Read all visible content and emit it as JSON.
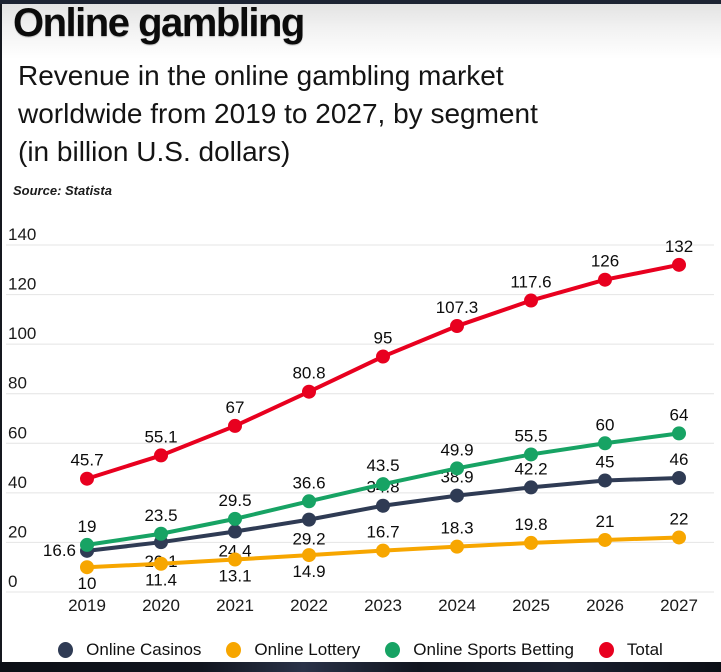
{
  "page": {
    "title": "Online gambling",
    "subtitle_lines": [
      "Revenue in the online gambling market",
      "worldwide from 2019 to 2027, by segment",
      "(in billion U.S. dollars)"
    ],
    "source": "Source: Statista"
  },
  "chart_data": {
    "type": "line",
    "title": "Revenue in the online gambling market worldwide from 2019 to 2027, by segment (in billion U.S. dollars)",
    "x": [
      2019,
      2020,
      2021,
      2022,
      2023,
      2024,
      2025,
      2026,
      2027
    ],
    "series": [
      {
        "name": "Online Casinos",
        "color": "#2f3b54",
        "values": [
          16.6,
          20.1,
          24.4,
          29.2,
          34.8,
          38.9,
          42.2,
          45,
          46
        ]
      },
      {
        "name": "Online Lottery",
        "color": "#f7a600",
        "values": [
          10,
          11.4,
          13.1,
          14.9,
          16.7,
          18.3,
          19.8,
          21,
          22
        ]
      },
      {
        "name": "Online Sports Betting",
        "color": "#17a364",
        "values": [
          19,
          23.5,
          29.5,
          36.6,
          43.5,
          49.9,
          55.5,
          60,
          64
        ]
      },
      {
        "name": "Total",
        "color": "#e8001f",
        "values": [
          45.7,
          55.1,
          67,
          80.8,
          95,
          107.3,
          117.6,
          126,
          132
        ]
      }
    ],
    "ylim": [
      0,
      140
    ],
    "yticks": [
      0,
      20,
      40,
      60,
      80,
      100,
      120,
      140
    ],
    "grid": true,
    "legend_position": "bottom",
    "data_labels": true,
    "colors": {
      "grid": "#e4e4e4",
      "axis_text": "#1a1a1a",
      "label_text": "#0c0c0c"
    }
  }
}
